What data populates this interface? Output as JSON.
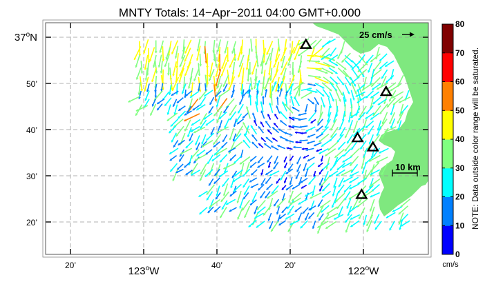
{
  "title": "MNTY Totals: 14−Apr−2011 04:00 GMT+0.000",
  "lat_labels": [
    {
      "text": "37",
      "suffix": "N",
      "lat": 37.0,
      "major": true
    },
    {
      "text": "50’",
      "lat": 36.8333,
      "major": false
    },
    {
      "text": "40’",
      "lat": 36.6667,
      "major": false
    },
    {
      "text": "30’",
      "lat": 36.5,
      "major": false
    },
    {
      "text": "20’",
      "lat": 36.3333,
      "major": false
    }
  ],
  "lon_labels": [
    {
      "text": "20’",
      "lon": -123.3333,
      "major": false
    },
    {
      "text": "123",
      "suffix": "W",
      "lon": -123.0,
      "major": true
    },
    {
      "text": "40’",
      "lon": -122.6667,
      "major": false
    },
    {
      "text": "20’",
      "lon": -122.3333,
      "major": false
    },
    {
      "text": "122",
      "suffix": "W",
      "lon": -122.0,
      "major": true
    }
  ],
  "scale_arrow_label": "25 cm/s",
  "scale_bar_label": "10 km",
  "colorbar": {
    "ticks": [
      "0",
      "10",
      "20",
      "30",
      "40",
      "50",
      "60",
      "70",
      "80"
    ],
    "unit": "cm/s",
    "note": "NOTE: Data outside color range will be saturated.",
    "colors": [
      "#0000ff",
      "#0080ff",
      "#00ffff",
      "#80ff80",
      "#ffff00",
      "#ff8000",
      "#ff0000",
      "#800000"
    ]
  },
  "land_color": "#7fe87f",
  "stations": [
    {
      "lon": -122.2617,
      "lat": 36.9733
    },
    {
      "lon": -121.8967,
      "lat": 36.8033
    },
    {
      "lon": -122.0267,
      "lat": 36.6367
    },
    {
      "lon": -121.9567,
      "lat": 36.6033
    },
    {
      "lon": -122.0083,
      "lat": 36.4317
    }
  ]
}
